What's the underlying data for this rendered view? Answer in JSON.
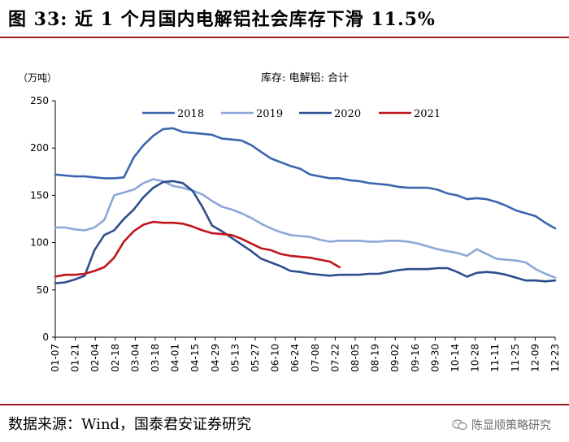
{
  "header": {
    "title": "图 33:  近 1 个月国内电解铝社会库存下滑 11.5%"
  },
  "footer": {
    "source": "数据来源：Wind，国泰君安证券研究",
    "watermark": "陈显顺策略研究",
    "watermark_icon": "wechat-icon"
  },
  "chart_data": {
    "type": "line",
    "title": "库存: 电解铝: 合计",
    "ylabel": "（万吨）",
    "ylim": [
      0,
      250
    ],
    "yticks": [
      0,
      50,
      100,
      150,
      200,
      250
    ],
    "grid": false,
    "legend_position": "top",
    "x_tick_labels": [
      "01-07",
      "01-21",
      "02-04",
      "02-18",
      "03-04",
      "03-18",
      "04-01",
      "04-15",
      "04-29",
      "05-13",
      "05-27",
      "06-10",
      "06-24",
      "07-08",
      "07-22",
      "08-05",
      "08-19",
      "09-02",
      "09-16",
      "09-30",
      "10-14",
      "10-28",
      "11-11",
      "11-25",
      "12-09",
      "12-23"
    ],
    "x_range": [
      0,
      357
    ],
    "series": [
      {
        "name": "2018",
        "color": "#3b66ad",
        "x": [
          0,
          7,
          14,
          21,
          28,
          35,
          42,
          49,
          56,
          63,
          70,
          77,
          84,
          91,
          98,
          105,
          112,
          119,
          126,
          133,
          140,
          147,
          154,
          161,
          168,
          175,
          182,
          189,
          196,
          203,
          210,
          217,
          224,
          231,
          238,
          245,
          252,
          259,
          266,
          273,
          280,
          287,
          294,
          301,
          308,
          315,
          322,
          329,
          336,
          343,
          350,
          357
        ],
        "y": [
          172,
          171,
          170,
          170,
          169,
          168,
          168,
          169,
          190,
          203,
          213,
          220,
          221,
          217,
          216,
          215,
          214,
          210,
          209,
          208,
          203,
          196,
          189,
          185,
          181,
          178,
          172,
          170,
          168,
          168,
          166,
          165,
          163,
          162,
          161,
          159,
          158,
          158,
          158,
          156,
          152,
          150,
          146,
          147,
          146,
          143,
          139,
          134,
          131,
          128,
          121,
          115
        ]
      },
      {
        "name": "2019",
        "color": "#8fa6da",
        "x": [
          0,
          7,
          14,
          21,
          28,
          35,
          42,
          49,
          56,
          63,
          70,
          77,
          84,
          91,
          98,
          105,
          112,
          119,
          126,
          133,
          140,
          147,
          154,
          161,
          168,
          175,
          182,
          189,
          196,
          203,
          210,
          217,
          224,
          231,
          238,
          245,
          252,
          259,
          266,
          273,
          280,
          287,
          294,
          301,
          308,
          315,
          322,
          329,
          336,
          343,
          350,
          357
        ],
        "y": [
          116,
          116,
          114,
          113,
          116,
          124,
          150,
          153,
          156,
          163,
          167,
          165,
          160,
          158,
          155,
          151,
          144,
          138,
          135,
          131,
          126,
          120,
          115,
          111,
          108,
          107,
          106,
          103,
          101,
          102,
          102,
          102,
          101,
          101,
          102,
          102,
          101,
          99,
          96,
          93,
          91,
          89,
          86,
          93,
          88,
          83,
          82,
          81,
          79,
          72,
          67,
          63
        ]
      },
      {
        "name": "2020",
        "color": "#2e4e8f",
        "x": [
          0,
          7,
          14,
          21,
          28,
          35,
          42,
          49,
          56,
          63,
          70,
          77,
          84,
          91,
          98,
          105,
          112,
          119,
          126,
          133,
          140,
          147,
          154,
          161,
          168,
          175,
          182,
          189,
          196,
          203,
          210,
          217,
          224,
          231,
          238,
          245,
          252,
          259,
          266,
          273,
          280,
          287,
          294,
          301,
          308,
          315,
          322,
          329,
          336,
          343,
          350,
          357
        ],
        "y": [
          57,
          58,
          61,
          65,
          92,
          108,
          113,
          125,
          135,
          148,
          158,
          164,
          165,
          163,
          155,
          138,
          118,
          112,
          105,
          98,
          91,
          83,
          79,
          75,
          70,
          69,
          67,
          66,
          65,
          66,
          66,
          66,
          67,
          67,
          69,
          71,
          72,
          72,
          72,
          73,
          73,
          69,
          64,
          68,
          69,
          68,
          66,
          63,
          60,
          60,
          59,
          60
        ]
      },
      {
        "name": "2021",
        "color": "#c0141b",
        "x": [
          0,
          7,
          14,
          21,
          28,
          35,
          42,
          49,
          56,
          63,
          70,
          77,
          84,
          91,
          98,
          105,
          112,
          119,
          126,
          133,
          140,
          147,
          154,
          161,
          168,
          175,
          182,
          189,
          196,
          203
        ],
        "y": [
          64,
          66,
          66,
          67,
          70,
          74,
          84,
          101,
          112,
          119,
          122,
          121,
          121,
          120,
          117,
          113,
          110,
          109,
          108,
          104,
          99,
          94,
          92,
          88,
          86,
          85,
          84,
          82,
          80,
          74
        ]
      }
    ]
  }
}
